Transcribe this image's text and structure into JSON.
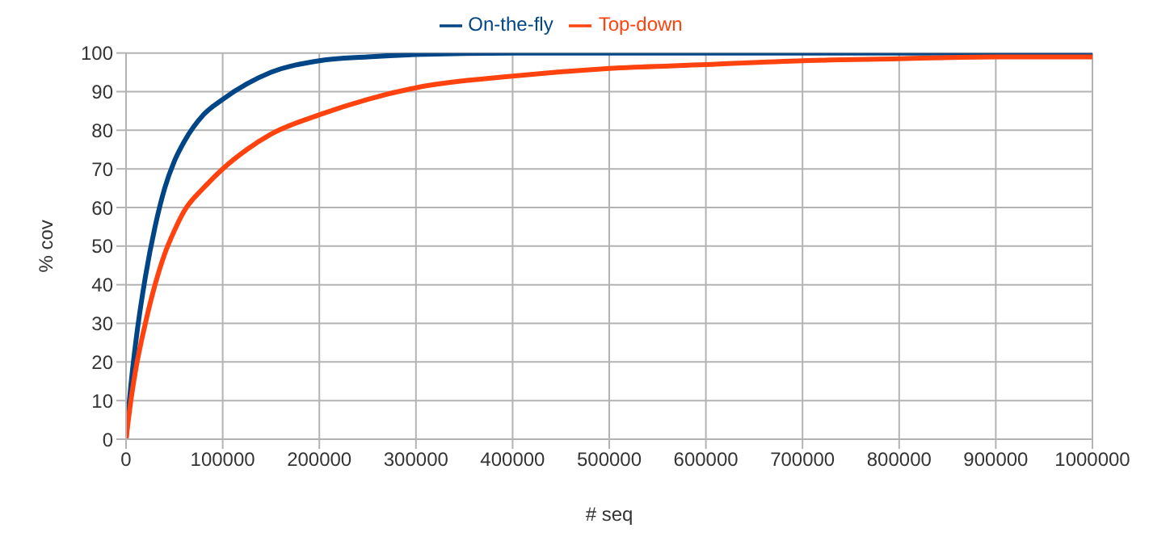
{
  "chart_data": {
    "type": "line",
    "xlabel": "# seq",
    "ylabel": "% cov",
    "x": [
      0,
      5000,
      10000,
      20000,
      30000,
      40000,
      50000,
      60000,
      80000,
      100000,
      125000,
      150000,
      200000,
      250000,
      300000,
      400000,
      500000,
      600000,
      700000,
      800000,
      900000,
      1000000
    ],
    "series": [
      {
        "name": "On-the-fly",
        "color": "#004586",
        "values": [
          0,
          14,
          25,
          42,
          55,
          65,
          72,
          77,
          84,
          88,
          92,
          95,
          98,
          99,
          99.6,
          100,
          100,
          100,
          100,
          100,
          100,
          100
        ]
      },
      {
        "name": "Top-down",
        "color": "#ff420e",
        "values": [
          0,
          10,
          18,
          30,
          40,
          48,
          54,
          59,
          65,
          70,
          75,
          79,
          84,
          88,
          91,
          94,
          96,
          97,
          98,
          98.5,
          99,
          99
        ]
      }
    ],
    "xlim": [
      0,
      1000000
    ],
    "xticks": [
      0,
      100000,
      200000,
      300000,
      400000,
      500000,
      600000,
      700000,
      800000,
      900000,
      1000000
    ],
    "ylim": [
      0,
      100
    ],
    "yticks": [
      0,
      10,
      20,
      30,
      40,
      50,
      60,
      70,
      80,
      90,
      100
    ],
    "grid": true,
    "legend": "top",
    "marker": "none",
    "line_style": "solid"
  }
}
